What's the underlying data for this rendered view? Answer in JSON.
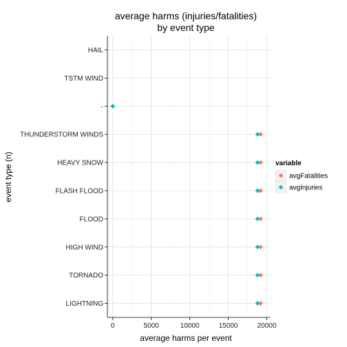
{
  "chart_data": {
    "type": "scatter",
    "title_lines": [
      "average harms (injuries/fatalities)",
      "by event type"
    ],
    "xlabel": "average harms per event",
    "ylabel": "event type (n)",
    "xlim": [
      -700,
      20400
    ],
    "xticks": [
      0,
      5000,
      10000,
      15000,
      20000
    ],
    "xtick_labels": [
      "0",
      "5000",
      "10000",
      "15000",
      "20000"
    ],
    "categories": [
      "HAIL",
      "TSTM WIND",
      "-",
      "THUNDERSTORM WINDS",
      "HEAVY SNOW",
      "FLASH FLOOD",
      "FLOOD",
      "HIGH WIND",
      "TORNADO",
      "LIGHTNING"
    ],
    "grid": true,
    "legend_position": "right",
    "legend_title": "variable",
    "series": [
      {
        "name": "avgFatalities",
        "color": "#F8766D",
        "points": [
          {
            "category": "-",
            "value": 0
          },
          {
            "category": "THUNDERSTORM WINDS",
            "value": 19200
          },
          {
            "category": "HEAVY SNOW",
            "value": 19200
          },
          {
            "category": "FLASH FLOOD",
            "value": 19200
          },
          {
            "category": "FLOOD",
            "value": 19200
          },
          {
            "category": "HIGH WIND",
            "value": 19200
          },
          {
            "category": "TORNADO",
            "value": 19200
          },
          {
            "category": "LIGHTNING",
            "value": 19200
          }
        ]
      },
      {
        "name": "avgInjuries",
        "color": "#00BFC4",
        "points": [
          {
            "category": "-",
            "value": 0
          },
          {
            "category": "THUNDERSTORM WINDS",
            "value": 18800
          },
          {
            "category": "HEAVY SNOW",
            "value": 18800
          },
          {
            "category": "FLASH FLOOD",
            "value": 18800
          },
          {
            "category": "FLOOD",
            "value": 18800
          },
          {
            "category": "HIGH WIND",
            "value": 18800
          },
          {
            "category": "TORNADO",
            "value": 18800
          },
          {
            "category": "LIGHTNING",
            "value": 18800
          }
        ]
      }
    ]
  }
}
